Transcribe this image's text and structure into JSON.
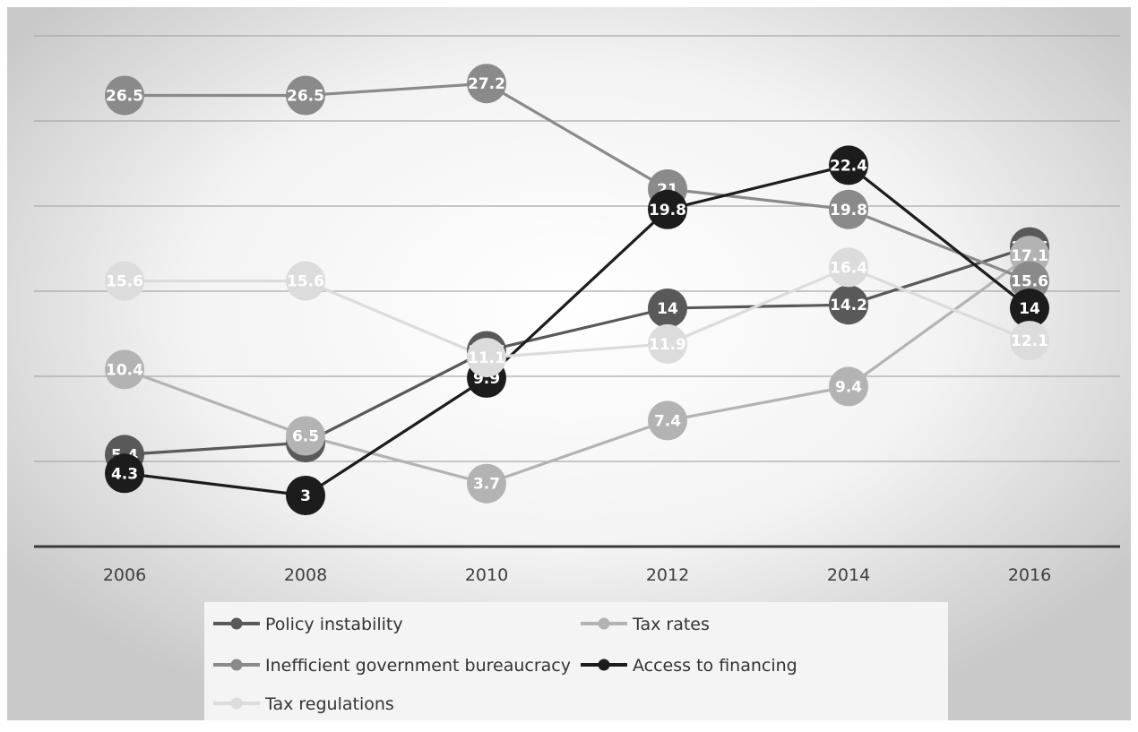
{
  "chart_data": {
    "type": "line",
    "categories": [
      "2006",
      "2008",
      "2010",
      "2012",
      "2014",
      "2016"
    ],
    "ylim": [
      0,
      30
    ],
    "grid": true,
    "legend_position": "bottom",
    "series": [
      {
        "name": "Policy instability",
        "color": "#595959",
        "values": [
          5.4,
          6.1,
          11.5,
          14,
          14.2,
          17.6
        ]
      },
      {
        "name": "Tax rates",
        "color": "#b3b3b3",
        "values": [
          10.4,
          6.5,
          3.7,
          7.4,
          9.4,
          17.1
        ]
      },
      {
        "name": "Inefficient government bureaucracy",
        "color": "#8a8a8a",
        "values": [
          26.5,
          26.5,
          27.2,
          21,
          19.8,
          15.6
        ]
      },
      {
        "name": "Access to financing",
        "color": "#1c1c1c",
        "values": [
          4.3,
          3,
          9.9,
          19.8,
          22.4,
          14
        ]
      },
      {
        "name": "Tax regulations",
        "color": "#dcdcdc",
        "values": [
          15.6,
          15.6,
          11.1,
          11.9,
          16.4,
          12.1
        ]
      }
    ]
  }
}
